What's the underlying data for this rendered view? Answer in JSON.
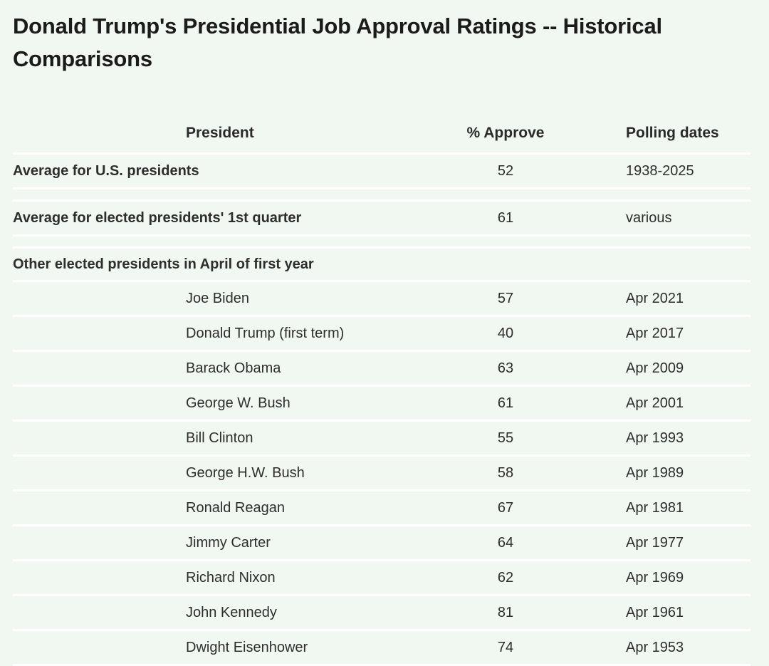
{
  "title": "Donald Trump's Presidential Job Approval Ratings -- Historical Comparisons",
  "table": {
    "headers": {
      "president": "President",
      "approve": "% Approve",
      "dates": "Polling dates"
    },
    "summary_rows": [
      {
        "label": "Average for U.S. presidents",
        "approve": "52",
        "dates": "1938-2025"
      },
      {
        "label": "Average for elected presidents' 1st quarter",
        "approve": "61",
        "dates": "various"
      }
    ],
    "group_label": "Other elected presidents in April of first year",
    "rows": [
      {
        "president": "Joe Biden",
        "approve": "57",
        "dates": "Apr 2021"
      },
      {
        "president": "Donald Trump (first term)",
        "approve": "40",
        "dates": "Apr 2017"
      },
      {
        "president": "Barack Obama",
        "approve": "63",
        "dates": "Apr 2009"
      },
      {
        "president": "George W. Bush",
        "approve": "61",
        "dates": "Apr 2001"
      },
      {
        "president": "Bill Clinton",
        "approve": "55",
        "dates": "Apr 1993"
      },
      {
        "president": "George H.W. Bush",
        "approve": "58",
        "dates": "Apr 1989"
      },
      {
        "president": "Ronald Reagan",
        "approve": "67",
        "dates": "Apr 1981"
      },
      {
        "president": "Jimmy Carter",
        "approve": "64",
        "dates": "Apr 1977"
      },
      {
        "president": "Richard Nixon",
        "approve": "62",
        "dates": "Apr 1969"
      },
      {
        "president": "John Kennedy",
        "approve": "81",
        "dates": "Apr 1961"
      },
      {
        "president": "Dwight Eisenhower",
        "approve": "74",
        "dates": "Apr 1953"
      }
    ]
  }
}
